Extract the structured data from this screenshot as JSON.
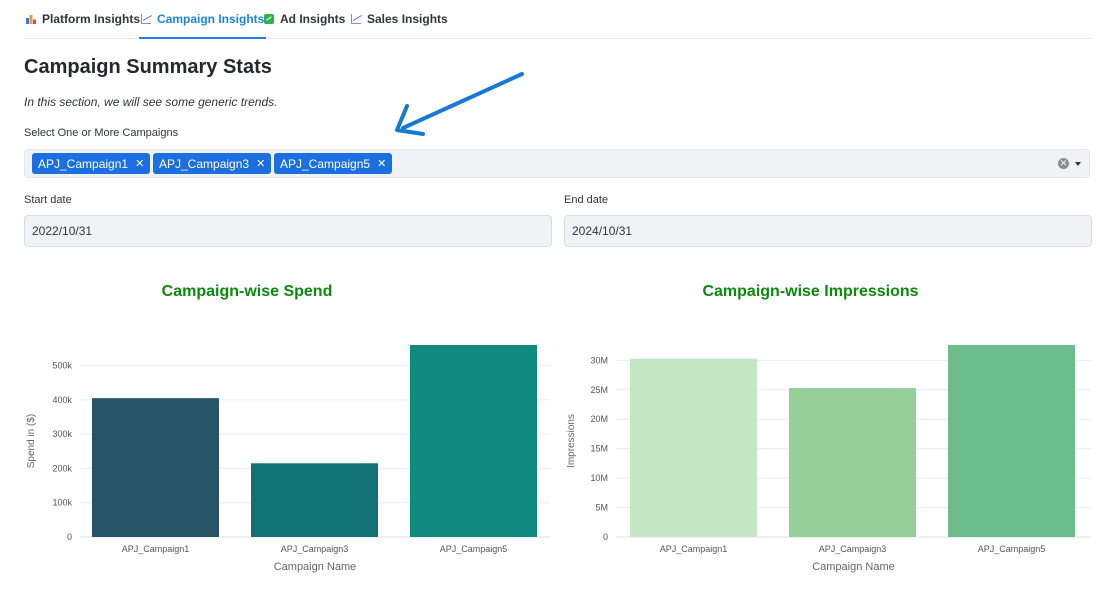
{
  "tabs": [
    {
      "label": "Platform Insights",
      "icon": "bar-chart-icon"
    },
    {
      "label": "Campaign Insights",
      "icon": "trend-chart-icon"
    },
    {
      "label": "Ad Insights",
      "icon": "green-chart-icon"
    },
    {
      "label": "Sales Insights",
      "icon": "trend-chart-icon"
    }
  ],
  "active_tab": "Campaign Insights",
  "page": {
    "title": "Campaign Summary Stats",
    "subtitle": "In this section, we will see some generic trends."
  },
  "campaign_select": {
    "label": "Select One or More Campaigns",
    "selected": [
      "APJ_Campaign1",
      "APJ_Campaign3",
      "APJ_Campaign5"
    ],
    "chip_color": "#1c6fe0"
  },
  "start_date": {
    "label": "Start date",
    "value": "2022/10/31"
  },
  "end_date": {
    "label": "End date",
    "value": "2024/10/31"
  },
  "chart_data": [
    {
      "type": "bar",
      "title": "Campaign-wise Spend",
      "xlabel": "Campaign Name",
      "ylabel": "Spend in ($)",
      "categories": [
        "APJ_Campaign1",
        "APJ_Campaign3",
        "APJ_Campaign5"
      ],
      "values": [
        405000,
        215000,
        560000
      ],
      "colors": [
        "#245465",
        "#117275",
        "#108a7e"
      ],
      "ylim": [
        0,
        560000
      ],
      "yticks": [
        0,
        100000,
        200000,
        300000,
        400000,
        500000
      ],
      "ytick_labels": [
        "0",
        "100k",
        "200k",
        "300k",
        "400k",
        "500k"
      ],
      "grid": true
    },
    {
      "type": "bar",
      "title": "Campaign-wise Impressions",
      "xlabel": "Campaign Name",
      "ylabel": "Impressions",
      "categories": [
        "APJ_Campaign1",
        "APJ_Campaign3",
        "APJ_Campaign5"
      ],
      "values": [
        30300000,
        25300000,
        32600000
      ],
      "colors": [
        "#c5e6c3",
        "#97d19a",
        "#6dbd8c"
      ],
      "ylim": [
        0,
        32600000
      ],
      "yticks": [
        0,
        5000000,
        10000000,
        15000000,
        20000000,
        25000000,
        30000000
      ],
      "ytick_labels": [
        "0",
        "5M",
        "10M",
        "15M",
        "20M",
        "25M",
        "30M"
      ],
      "grid": true
    }
  ]
}
